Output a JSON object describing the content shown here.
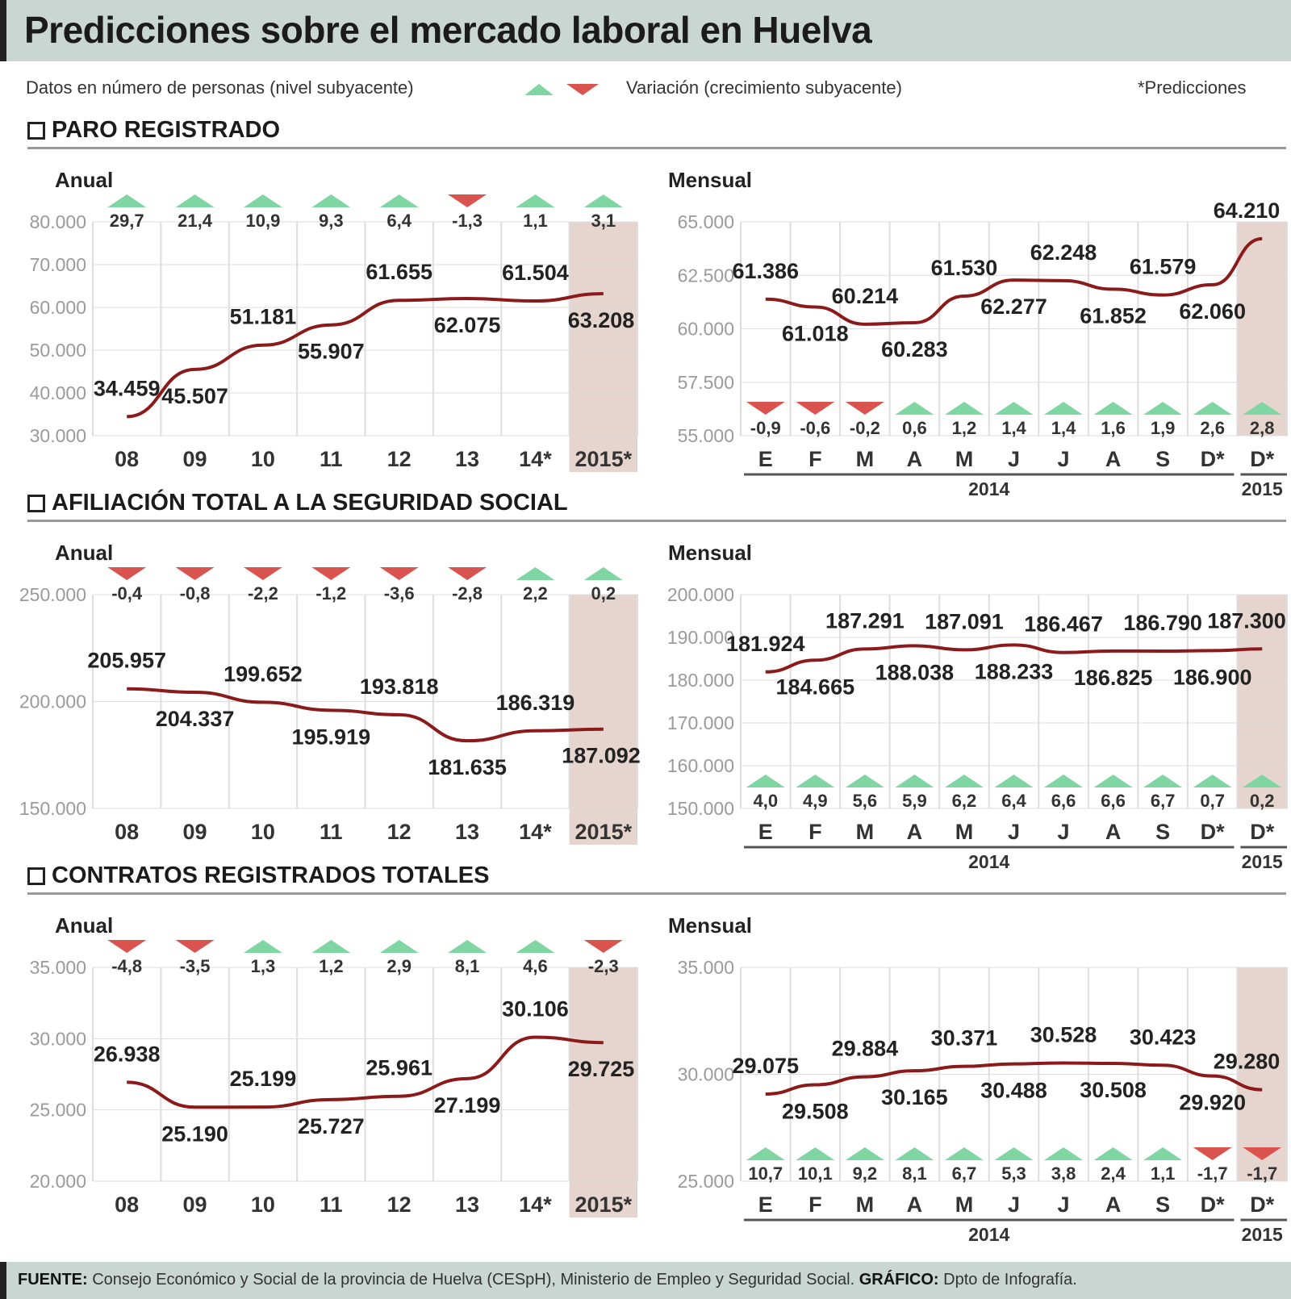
{
  "title": "Predicciones sobre el mercado laboral en Huelva",
  "legend": {
    "datos": "Datos en número de personas (nivel subyacente)",
    "variacion": "Variación (crecimiento subyacente)",
    "predicciones": "*Predicciones"
  },
  "sections": [
    {
      "title": "PARO REGISTRADO"
    },
    {
      "title": "AFILIACIÓN TOTAL A LA SEGURIDAD SOCIAL"
    },
    {
      "title": "CONTRATOS REGISTRADOS TOTALES"
    }
  ],
  "panel_labels": {
    "anual": "Anual",
    "mensual": "Mensual"
  },
  "footer": {
    "fuente_label": "FUENTE:",
    "fuente_text": "Consejo Económico y Social de la provincia de Huelva (CESpH), Ministerio de Empleo y Seguridad Social.",
    "grafico_label": "GRÁFICO:",
    "grafico_text": "Dpto de Infografía."
  },
  "colors": {
    "line": "#8b1a1a",
    "up": "#7fd6a2",
    "down": "#d9534f",
    "prediction_band": "#e6d5cf",
    "grid": "#dddddd"
  },
  "chart_data": [
    {
      "type": "line",
      "section": "PARO REGISTRADO",
      "period": "Anual",
      "categories": [
        "08",
        "09",
        "10",
        "11",
        "12",
        "13",
        "14*",
        "2015*"
      ],
      "values": [
        34459,
        45507,
        51181,
        55907,
        61655,
        62075,
        61504,
        63208
      ],
      "value_labels": [
        "34.459",
        "45.507",
        "51.181",
        "55.907",
        "61.655",
        "62.075",
        "61.504",
        "63.208"
      ],
      "variation": [
        29.7,
        21.4,
        10.9,
        9.3,
        6.4,
        -1.3,
        1.1,
        3.1
      ],
      "variation_labels": [
        "29,7",
        "21,4",
        "10,9",
        "9,3",
        "6,4",
        "-1,3",
        "1,1",
        "3,1"
      ],
      "yticks": [
        "30.000",
        "40.000",
        "50.000",
        "60.000",
        "70.000",
        "80.000"
      ],
      "ylim": [
        30000,
        80000
      ]
    },
    {
      "type": "line",
      "section": "PARO REGISTRADO",
      "period": "Mensual",
      "categories": [
        "E",
        "F",
        "M",
        "A",
        "M",
        "J",
        "J",
        "A",
        "S",
        "D*",
        "D*"
      ],
      "group_labels": [
        "2014",
        "2015"
      ],
      "values": [
        61386,
        61018,
        60214,
        60283,
        61530,
        62277,
        62248,
        61852,
        61579,
        62060,
        64210
      ],
      "value_labels": [
        "61.386",
        "61.018",
        "60.214",
        "60.283",
        "61.530",
        "62.277",
        "62.248",
        "61.852",
        "61.579",
        "62.060",
        "64.210"
      ],
      "variation": [
        -0.9,
        -0.6,
        -0.2,
        0.6,
        1.2,
        1.4,
        1.4,
        1.6,
        1.9,
        2.6,
        2.8
      ],
      "variation_labels": [
        "-0,9",
        "-0,6",
        "-0,2",
        "0,6",
        "1,2",
        "1,4",
        "1,4",
        "1,6",
        "1,9",
        "2,6",
        "2,8"
      ],
      "yticks": [
        "55.000",
        "57.500",
        "60.000",
        "62.500",
        "65.000"
      ],
      "ylim": [
        55000,
        65000
      ]
    },
    {
      "type": "line",
      "section": "AFILIACIÓN TOTAL A LA SEGURIDAD SOCIAL",
      "period": "Anual",
      "categories": [
        "08",
        "09",
        "10",
        "11",
        "12",
        "13",
        "14*",
        "2015*"
      ],
      "values": [
        205957,
        204337,
        199652,
        195919,
        193818,
        181635,
        186319,
        187092
      ],
      "value_labels": [
        "205.957",
        "204.337",
        "199.652",
        "195.919",
        "193.818",
        "181.635",
        "186.319",
        "187.092"
      ],
      "variation": [
        -0.4,
        -0.8,
        -2.2,
        -1.2,
        -3.6,
        -2.8,
        2.2,
        0.2
      ],
      "variation_labels": [
        "-0,4",
        "-0,8",
        "-2,2",
        "-1,2",
        "-3,6",
        "-2,8",
        "2,2",
        "0,2"
      ],
      "yticks": [
        "150.000",
        "200.000",
        "250.000"
      ],
      "ylim": [
        150000,
        250000
      ]
    },
    {
      "type": "line",
      "section": "AFILIACIÓN TOTAL A LA SEGURIDAD SOCIAL",
      "period": "Mensual",
      "categories": [
        "E",
        "F",
        "M",
        "A",
        "M",
        "J",
        "J",
        "A",
        "S",
        "D*",
        "D*"
      ],
      "group_labels": [
        "2014",
        "2015"
      ],
      "values": [
        181924,
        184665,
        187291,
        188038,
        187091,
        188233,
        186467,
        186825,
        186790,
        186900,
        187300
      ],
      "value_labels": [
        "181.924",
        "184.665",
        "187.291",
        "188.038",
        "187.091",
        "188.233",
        "186.467",
        "186.825",
        "186.790",
        "186.900",
        "187.300"
      ],
      "variation": [
        4.0,
        4.9,
        5.6,
        5.9,
        6.2,
        6.4,
        6.6,
        6.6,
        6.7,
        0.7,
        0.2
      ],
      "variation_labels": [
        "4,0",
        "4,9",
        "5,6",
        "5,9",
        "6,2",
        "6,4",
        "6,6",
        "6,6",
        "6,7",
        "0,7",
        "0,2"
      ],
      "yticks": [
        "150.000",
        "160.000",
        "170.000",
        "180.000",
        "190.000",
        "200.000"
      ],
      "ylim": [
        150000,
        200000
      ]
    },
    {
      "type": "line",
      "section": "CONTRATOS REGISTRADOS TOTALES",
      "period": "Anual",
      "categories": [
        "08",
        "09",
        "10",
        "11",
        "12",
        "13",
        "14*",
        "2015*"
      ],
      "values": [
        26938,
        25190,
        25199,
        25727,
        25961,
        27199,
        30106,
        29725
      ],
      "value_labels": [
        "26.938",
        "25.190",
        "25.199",
        "25.727",
        "25.961",
        "27.199",
        "30.106",
        "29.725"
      ],
      "variation": [
        -4.8,
        -3.5,
        1.3,
        1.2,
        2.9,
        8.1,
        4.6,
        -2.3
      ],
      "variation_labels": [
        "-4,8",
        "-3,5",
        "1,3",
        "1,2",
        "2,9",
        "8,1",
        "4,6",
        "-2,3"
      ],
      "yticks": [
        "20.000",
        "25.000",
        "30.000",
        "35.000"
      ],
      "ylim": [
        20000,
        35000
      ]
    },
    {
      "type": "line",
      "section": "CONTRATOS REGISTRADOS TOTALES",
      "period": "Mensual",
      "categories": [
        "E",
        "F",
        "M",
        "A",
        "M",
        "J",
        "J",
        "A",
        "S",
        "D*",
        "D*"
      ],
      "group_labels": [
        "2014",
        "2015"
      ],
      "values": [
        29075,
        29508,
        29884,
        30165,
        30371,
        30488,
        30528,
        30508,
        30423,
        29920,
        29280
      ],
      "value_labels": [
        "29.075",
        "29.508",
        "29.884",
        "30.165",
        "30.371",
        "30.488",
        "30.528",
        "30.508",
        "30.423",
        "29.920",
        "29.280"
      ],
      "variation": [
        10.7,
        10.1,
        9.2,
        8.1,
        6.7,
        5.3,
        3.8,
        2.4,
        1.1,
        -1.7,
        -1.7
      ],
      "variation_labels": [
        "10,7",
        "10,1",
        "9,2",
        "8,1",
        "6,7",
        "5,3",
        "3,8",
        "2,4",
        "1,1",
        "-1,7",
        "-1,7"
      ],
      "yticks": [
        "25.000",
        "30.000",
        "35.000"
      ],
      "ylim": [
        25000,
        35000
      ]
    }
  ]
}
